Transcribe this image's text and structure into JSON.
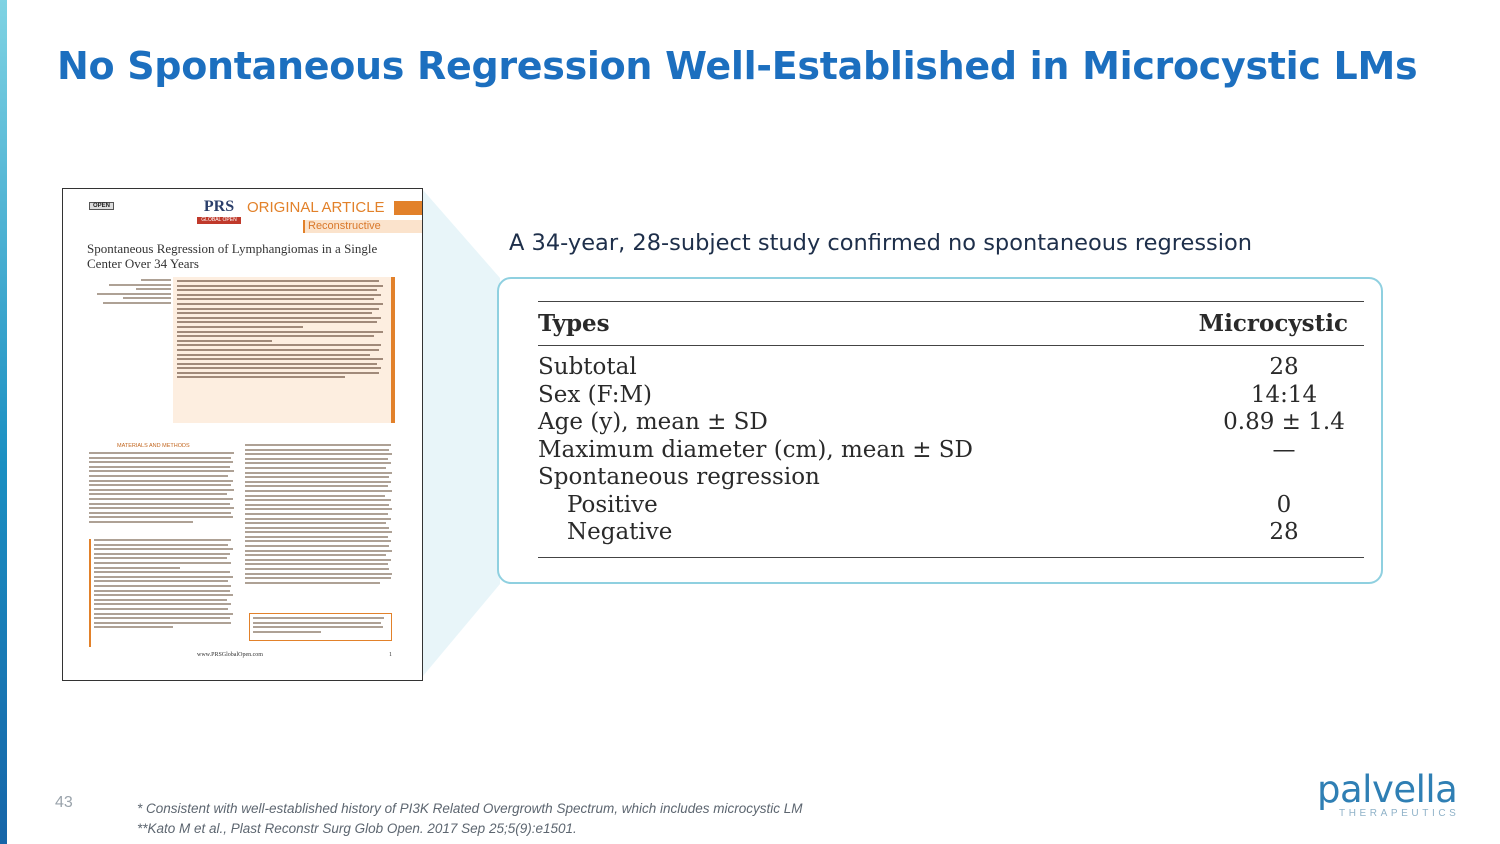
{
  "slide": {
    "title": "No Spontaneous Regression Well-Established in Microcystic LMs",
    "page_number": "43"
  },
  "paper": {
    "badge": "OPEN",
    "journal_logo": "PRS",
    "journal_logo_sub": "GLOBAL OPEN",
    "article_type": "ORIGINAL ARTICLE",
    "section": "Reconstructive",
    "title": "Spontaneous Regression of Lymphangiomas in a Single Center Over 34 Years",
    "section_heading": "MATERIALS AND METHODS",
    "footer_url": "www.PRSGlobalOpen.com",
    "footer_page": "1"
  },
  "study": {
    "caption": "A 34-year, 28-subject study confirmed no spontaneous regression",
    "columns": [
      "Types",
      "Microcystic"
    ],
    "rows": [
      {
        "label": "Subtotal",
        "value": "28"
      },
      {
        "label": "Sex (F:M)",
        "value": "14:14"
      },
      {
        "label": "Age (y), mean ± SD",
        "value": "0.89 ± 1.4"
      },
      {
        "label": "Maximum diameter (cm), mean ± SD",
        "value": "—"
      },
      {
        "label": "Spontaneous regression",
        "value": ""
      },
      {
        "label": "Positive",
        "value": "0"
      },
      {
        "label": "Negative",
        "value": "28"
      }
    ]
  },
  "footnotes": [
    "* Consistent with well-established history of PI3K Related Overgrowth Spectrum, which includes microcystic LM",
    "**Kato M et al., Plast Reconstr Surg Glob Open. 2017 Sep 25;5(9):e1501."
  ],
  "logo": {
    "name": "palvella",
    "tagline": "THERAPEUTICS"
  },
  "colors": {
    "title": "#1c6fbf",
    "table_border": "#8fd0e0",
    "accent_orange": "#e2812a",
    "logo": "#2f7fb4"
  }
}
